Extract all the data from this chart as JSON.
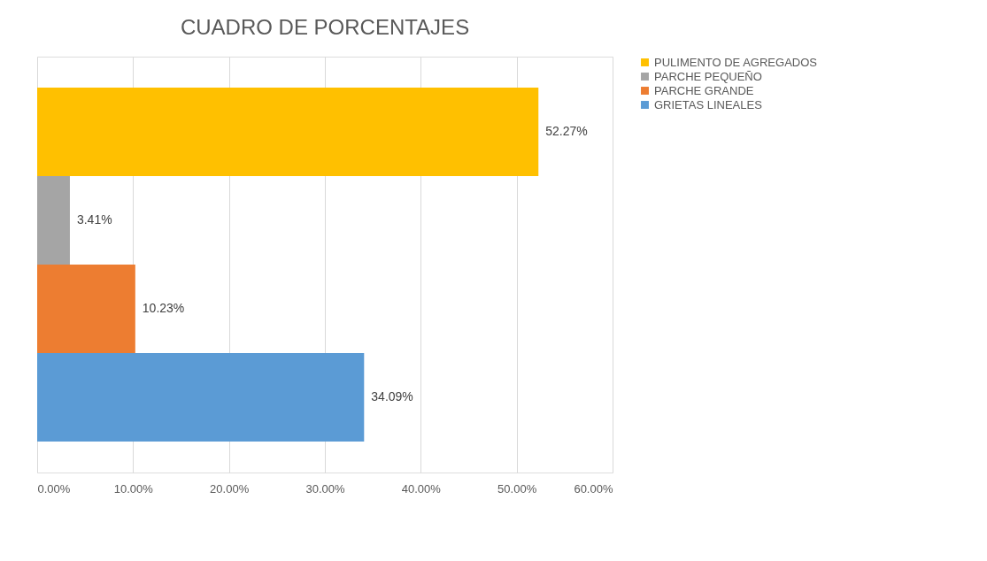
{
  "chart_data": {
    "type": "bar",
    "orientation": "horizontal",
    "title": "CUADRO DE PORCENTAJES",
    "categories": [
      null,
      null,
      null,
      null
    ],
    "series": [
      {
        "name": "PULIMENTO DE AGREGADOS",
        "color": "#ffc000",
        "values": [
          52.27,
          null,
          null,
          null
        ],
        "value_labels": [
          "52.27%",
          null,
          null,
          null
        ]
      },
      {
        "name": "PARCHE PEQUEÑO",
        "color": "#a5a5a5",
        "values": [
          null,
          3.41,
          null,
          null
        ],
        "value_labels": [
          null,
          "3.41%",
          null,
          null
        ]
      },
      {
        "name": "PARCHE GRANDE",
        "color": "#ed7d31",
        "values": [
          null,
          null,
          10.23,
          null
        ],
        "value_labels": [
          null,
          null,
          "10.23%",
          null
        ]
      },
      {
        "name": "GRIETAS LINEALES",
        "color": "#5b9bd5",
        "values": [
          null,
          null,
          null,
          34.09
        ],
        "value_labels": [
          null,
          null,
          null,
          "34.09%"
        ]
      }
    ],
    "xlim": [
      0,
      60
    ],
    "xticks": [
      {
        "value": 0,
        "label": "0.00%"
      },
      {
        "value": 10,
        "label": "10.00%"
      },
      {
        "value": 20,
        "label": "20.00%"
      },
      {
        "value": 30,
        "label": "30.00%"
      },
      {
        "value": 40,
        "label": "40.00%"
      },
      {
        "value": 50,
        "label": "50.00%"
      },
      {
        "value": 60,
        "label": "60.00%"
      }
    ],
    "grid": "x",
    "legend": "right"
  }
}
